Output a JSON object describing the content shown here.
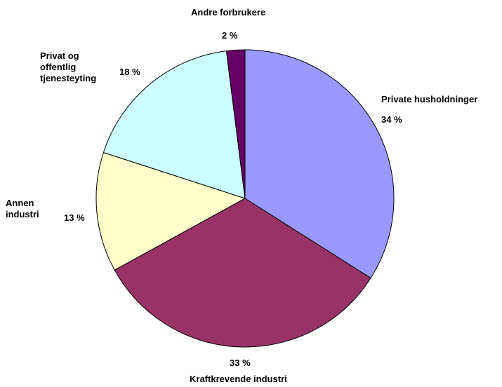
{
  "chart_data": {
    "type": "pie",
    "start": "top",
    "direction": "clockwise",
    "slices": [
      {
        "name": "Private husholdninger",
        "label_lines": [
          "Private husholdninger"
        ],
        "value": 34,
        "value_label": "34 %",
        "color": "#9999FF"
      },
      {
        "name": "Kraftkrevende industri",
        "label_lines": [
          "Kraftkrevende industri"
        ],
        "value": 33,
        "value_label": "33 %",
        "color": "#993366"
      },
      {
        "name": "Annen industri",
        "label_lines": [
          "Annen",
          "industri"
        ],
        "value": 13,
        "value_label": "13 %",
        "color": "#FFFFCC"
      },
      {
        "name": "Privat og offentlig tjenesteyting",
        "label_lines": [
          "Privat og",
          "offentlig",
          "tjenesteyting"
        ],
        "value": 18,
        "value_label": "18 %",
        "color": "#CCFFFF"
      },
      {
        "name": "Andre forbrukere",
        "label_lines": [
          "Andre forbrukere"
        ],
        "value": 2,
        "value_label": "2 %",
        "color": "#660066"
      }
    ],
    "legend": "none",
    "outline_color": "#000000"
  }
}
